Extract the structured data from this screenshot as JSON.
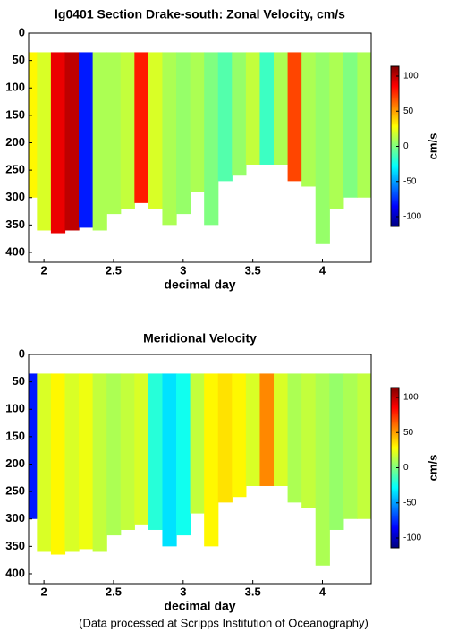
{
  "chart_data": [
    {
      "type": "contour",
      "title": "lg0401 Section Drake-south: Zonal Velocity, cm/s",
      "xlabel": "decimal day",
      "colorbar_label": "cm/s",
      "xlim": [
        1.89,
        4.35
      ],
      "ylim": [
        0,
        418
      ],
      "xticks": [
        2,
        2.5,
        3,
        3.5,
        4
      ],
      "yticks": [
        0,
        50,
        100,
        150,
        200,
        250,
        300,
        350,
        400
      ],
      "clim": [
        -114,
        114
      ],
      "cticks": [
        -100,
        -50,
        0,
        50,
        100
      ],
      "colormap": "jet",
      "depth_top": 35,
      "x": [
        1.9,
        2.0,
        2.1,
        2.2,
        2.3,
        2.4,
        2.5,
        2.6,
        2.7,
        2.8,
        2.9,
        3.0,
        3.1,
        3.2,
        3.3,
        3.4,
        3.5,
        3.6,
        3.7,
        3.8,
        3.9,
        4.0,
        4.1,
        4.2,
        4.3
      ],
      "values": [
        30,
        20,
        90,
        100,
        -80,
        10,
        10,
        15,
        80,
        20,
        10,
        5,
        10,
        0,
        -10,
        5,
        15,
        -15,
        10,
        70,
        10,
        5,
        10,
        0,
        10
      ],
      "depth_bottom": [
        300,
        360,
        365,
        360,
        355,
        360,
        330,
        320,
        310,
        320,
        350,
        330,
        290,
        350,
        270,
        260,
        240,
        240,
        240,
        270,
        280,
        385,
        320,
        300,
        300
      ]
    },
    {
      "type": "contour",
      "title": "Meridional Velocity",
      "xlabel": "decimal day",
      "colorbar_label": "cm/s",
      "xlim": [
        1.89,
        4.35
      ],
      "ylim": [
        0,
        418
      ],
      "xticks": [
        2,
        2.5,
        3,
        3.5,
        4
      ],
      "yticks": [
        0,
        50,
        100,
        150,
        200,
        250,
        300,
        350,
        400
      ],
      "clim": [
        -114,
        114
      ],
      "cticks": [
        -100,
        -50,
        0,
        50,
        100
      ],
      "colormap": "jet",
      "depth_top": 35,
      "x": [
        1.9,
        2.0,
        2.1,
        2.2,
        2.3,
        2.4,
        2.5,
        2.6,
        2.7,
        2.8,
        2.9,
        3.0,
        3.1,
        3.2,
        3.3,
        3.4,
        3.5,
        3.6,
        3.7,
        3.8,
        3.9,
        4.0,
        4.1,
        4.2,
        4.3
      ],
      "values": [
        -80,
        20,
        30,
        20,
        25,
        15,
        10,
        15,
        20,
        -20,
        -35,
        -25,
        15,
        30,
        35,
        30,
        20,
        55,
        20,
        10,
        15,
        10,
        5,
        10,
        15
      ],
      "depth_bottom": [
        300,
        360,
        365,
        360,
        355,
        360,
        330,
        320,
        310,
        320,
        350,
        330,
        290,
        350,
        270,
        260,
        240,
        240,
        240,
        270,
        280,
        385,
        320,
        300,
        300
      ]
    }
  ],
  "caption": "(Data processed at Scripps Institution of Oceanography)"
}
